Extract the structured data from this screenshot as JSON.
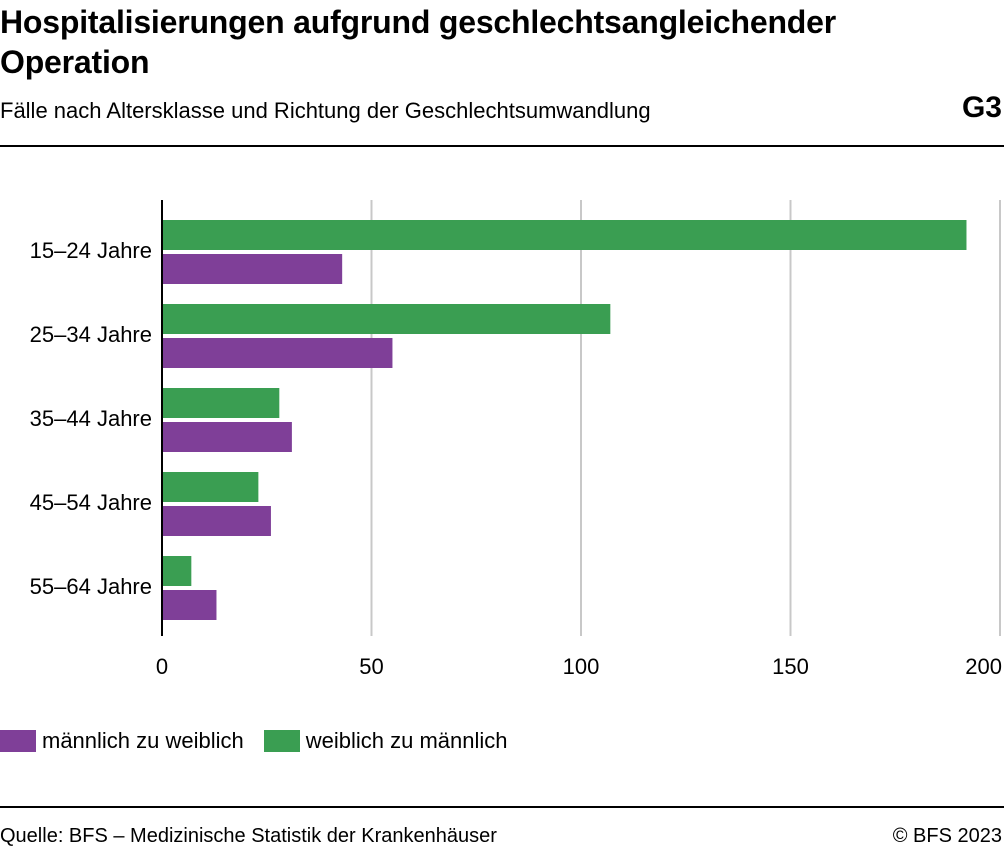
{
  "header": {
    "title": "Hospitalisierungen aufgrund geschlechtsangleichender Operation",
    "subtitle": "Fälle nach Altersklasse und Richtung der Geschlechtsumwandlung",
    "chart_id": "G3"
  },
  "footer": {
    "source": "Quelle: BFS – Medizinische Statistik der Krankenhäuser",
    "copyright": "© BFS 2023"
  },
  "chart_data": {
    "type": "bar",
    "orientation": "horizontal",
    "title": "Hospitalisierungen aufgrund geschlechtsangleichender Operation",
    "subtitle": "Fälle nach Altersklasse und Richtung der Geschlechtsumwandlung",
    "categories": [
      "15–24 Jahre",
      "25–34 Jahre",
      "35–44 Jahre",
      "45–54 Jahre",
      "55–64 Jahre"
    ],
    "series": [
      {
        "name": "weiblich zu männlich",
        "color": "#3a9e52",
        "values": [
          192,
          107,
          28,
          23,
          7
        ]
      },
      {
        "name": "männlich zu weiblich",
        "color": "#7f3f98",
        "values": [
          43,
          55,
          31,
          26,
          13
        ]
      }
    ],
    "legend_order": [
      "männlich zu weiblich",
      "weiblich zu männlich"
    ],
    "xlim": [
      0,
      200
    ],
    "xticks": [
      0,
      50,
      100,
      150,
      200
    ],
    "xlabel": "",
    "ylabel": "",
    "grid": true,
    "legend_position": "bottom-left"
  }
}
